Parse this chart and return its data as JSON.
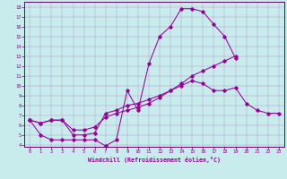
{
  "xlabel": "Windchill (Refroidissement éolien,°C)",
  "bg_color": "#c8ecec",
  "line_color": "#990099",
  "spine_color": "#660066",
  "xlim": [
    -0.5,
    23.5
  ],
  "ylim": [
    3.8,
    18.5
  ],
  "xticks": [
    0,
    1,
    2,
    3,
    4,
    5,
    6,
    7,
    8,
    9,
    10,
    11,
    12,
    13,
    14,
    15,
    16,
    17,
    18,
    19,
    20,
    21,
    22,
    23
  ],
  "yticks": [
    4,
    5,
    6,
    7,
    8,
    9,
    10,
    11,
    12,
    13,
    14,
    15,
    16,
    17,
    18
  ],
  "line1_x": [
    0,
    1,
    2,
    3,
    4,
    5,
    6,
    7,
    8,
    9,
    10,
    11,
    12,
    13,
    14,
    15,
    16,
    17,
    18,
    19
  ],
  "line1_y": [
    6.5,
    5.0,
    4.5,
    4.5,
    4.5,
    4.5,
    4.5,
    3.9,
    4.5,
    9.5,
    7.5,
    12.2,
    15.0,
    16.0,
    17.8,
    17.8,
    17.5,
    16.2,
    15.0,
    12.8
  ],
  "line2_x": [
    0,
    1,
    2,
    3,
    4,
    5,
    6,
    7,
    8,
    9,
    10,
    11,
    12,
    13,
    14,
    15,
    16,
    17,
    18,
    19,
    20,
    21,
    22,
    23
  ],
  "line2_y": [
    6.5,
    6.2,
    6.5,
    6.5,
    5.0,
    5.0,
    5.2,
    7.2,
    7.5,
    8.0,
    8.2,
    8.6,
    9.0,
    9.5,
    10.0,
    10.5,
    10.2,
    9.5,
    9.5,
    9.8,
    8.2,
    7.5,
    7.2,
    7.2
  ],
  "line3_x": [
    0,
    1,
    2,
    3,
    4,
    5,
    6,
    7,
    8,
    9,
    10,
    11,
    12,
    13,
    14,
    15,
    16,
    17,
    18,
    19
  ],
  "line3_y": [
    6.5,
    6.2,
    6.5,
    6.5,
    5.5,
    5.5,
    5.8,
    6.8,
    7.2,
    7.5,
    7.8,
    8.2,
    8.8,
    9.5,
    10.2,
    11.0,
    11.5,
    12.0,
    12.5,
    13.0
  ]
}
